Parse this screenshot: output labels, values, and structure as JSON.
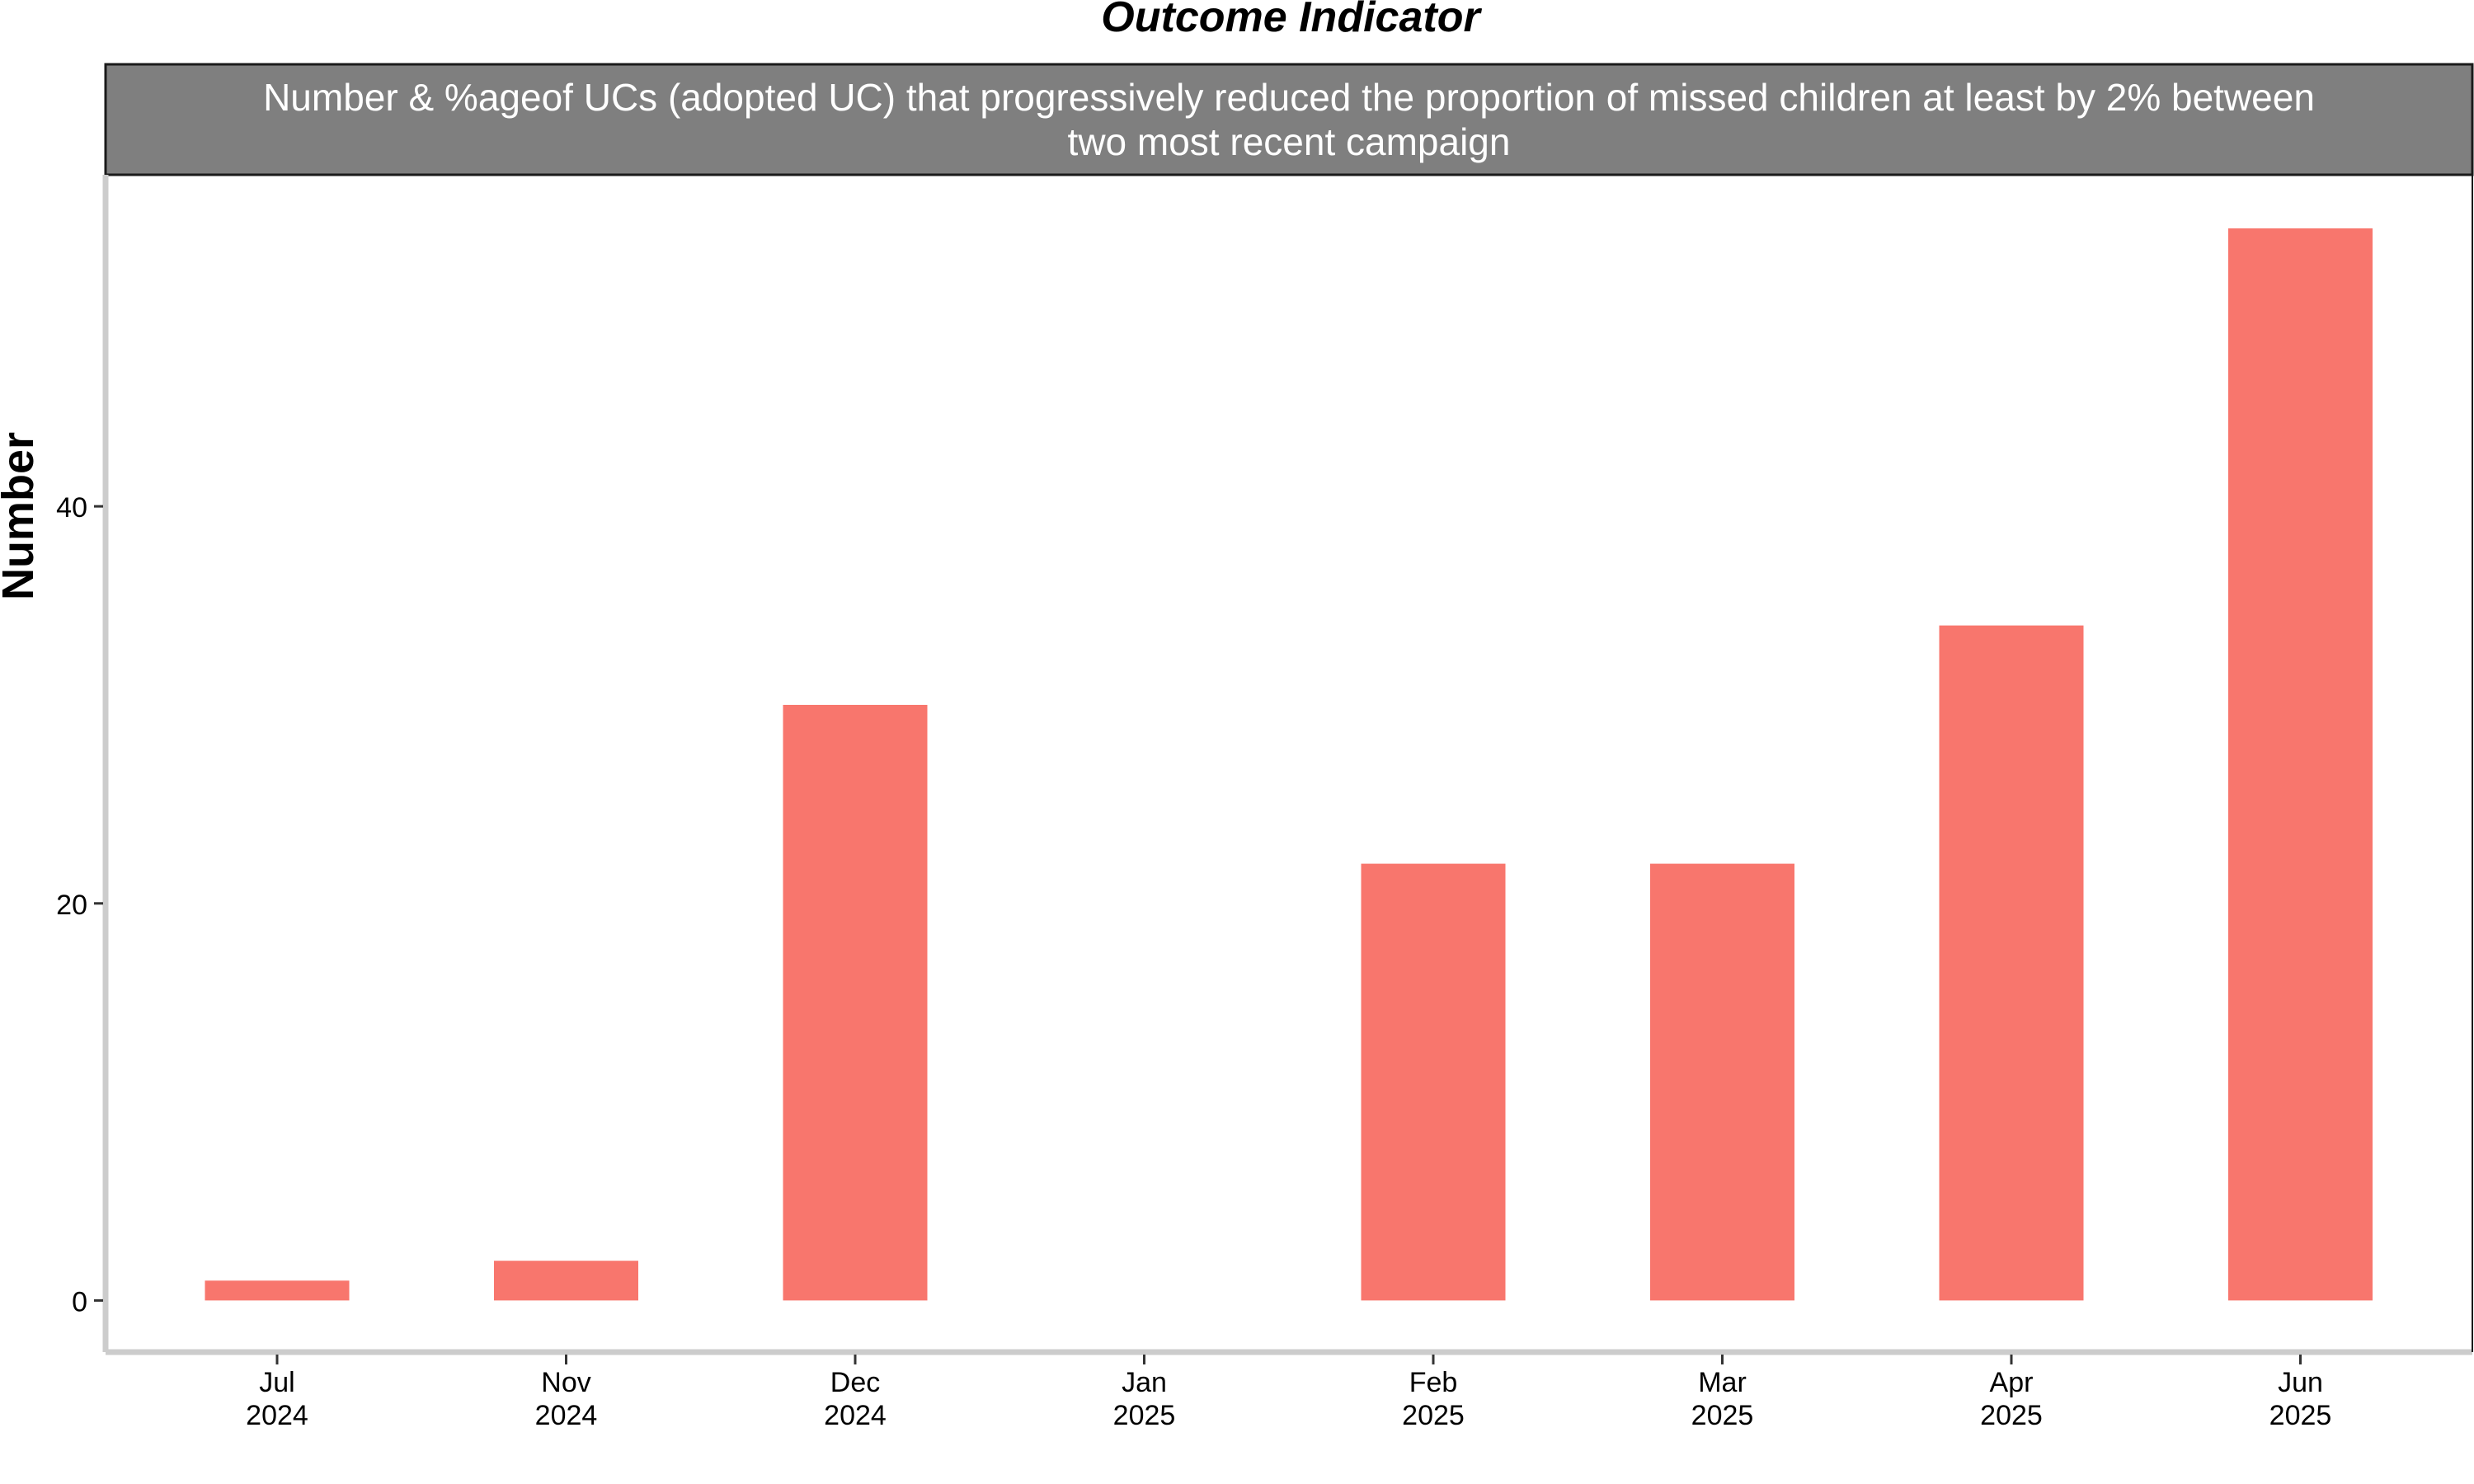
{
  "chart_data": {
    "type": "bar",
    "title": "Outcome Indicator",
    "subtitle": "Number & %ageof UCs (adopted UC) that progressively reduced the proportion of missed children at least by 2% between two most recent campaign",
    "subtitle_lines": [
      "Number & %ageof UCs (adopted UC) that progressively reduced the proportion of missed children at least by 2% between",
      "two most recent campaign"
    ],
    "ylabel": "Number",
    "xlabel": "",
    "categories": [
      "Jul 2024",
      "Nov 2024",
      "Dec 2024",
      "Jan 2025",
      "Feb 2025",
      "Mar 2025",
      "Apr 2025",
      "Jun 2025"
    ],
    "category_labels": [
      [
        "Jul",
        "2024"
      ],
      [
        "Nov",
        "2024"
      ],
      [
        "Dec",
        "2024"
      ],
      [
        "Jan",
        "2025"
      ],
      [
        "Feb",
        "2025"
      ],
      [
        "Mar",
        "2025"
      ],
      [
        "Apr",
        "2025"
      ],
      [
        "Jun",
        "2025"
      ]
    ],
    "values": [
      1,
      2,
      30,
      0,
      22,
      22,
      34,
      54
    ],
    "yticks": [
      0,
      20,
      40
    ],
    "ylim": [
      -2.6,
      56.7
    ],
    "grid": false,
    "legend": "none",
    "colors": {
      "bar": "#F8766D",
      "strip": "#7F7F7F",
      "strip_text": "#FFFFFF",
      "axis": "#CCCCCC",
      "text": "#000000"
    }
  }
}
